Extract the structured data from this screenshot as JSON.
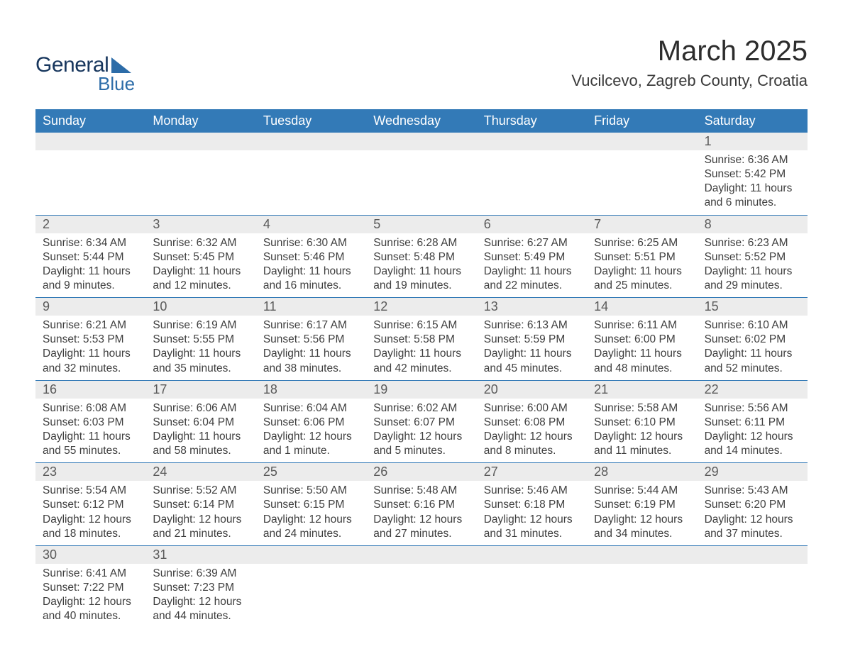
{
  "logo": {
    "text1": "General",
    "text2": "Blue"
  },
  "title": "March 2025",
  "location": "Vucilcevo, Zagreb County, Croatia",
  "colors": {
    "header_bg": "#337ab7",
    "daynum_bg": "#ececec",
    "text": "#3e3e3e",
    "logo_dark": "#17365d",
    "logo_blue": "#2c6ca8"
  },
  "weekdays": [
    "Sunday",
    "Monday",
    "Tuesday",
    "Wednesday",
    "Thursday",
    "Friday",
    "Saturday"
  ],
  "weeks": [
    [
      {
        "n": "",
        "sr": "",
        "ss": "",
        "dl": ""
      },
      {
        "n": "",
        "sr": "",
        "ss": "",
        "dl": ""
      },
      {
        "n": "",
        "sr": "",
        "ss": "",
        "dl": ""
      },
      {
        "n": "",
        "sr": "",
        "ss": "",
        "dl": ""
      },
      {
        "n": "",
        "sr": "",
        "ss": "",
        "dl": ""
      },
      {
        "n": "",
        "sr": "",
        "ss": "",
        "dl": ""
      },
      {
        "n": "1",
        "sr": "Sunrise: 6:36 AM",
        "ss": "Sunset: 5:42 PM",
        "dl": "Daylight: 11 hours and 6 minutes."
      }
    ],
    [
      {
        "n": "2",
        "sr": "Sunrise: 6:34 AM",
        "ss": "Sunset: 5:44 PM",
        "dl": "Daylight: 11 hours and 9 minutes."
      },
      {
        "n": "3",
        "sr": "Sunrise: 6:32 AM",
        "ss": "Sunset: 5:45 PM",
        "dl": "Daylight: 11 hours and 12 minutes."
      },
      {
        "n": "4",
        "sr": "Sunrise: 6:30 AM",
        "ss": "Sunset: 5:46 PM",
        "dl": "Daylight: 11 hours and 16 minutes."
      },
      {
        "n": "5",
        "sr": "Sunrise: 6:28 AM",
        "ss": "Sunset: 5:48 PM",
        "dl": "Daylight: 11 hours and 19 minutes."
      },
      {
        "n": "6",
        "sr": "Sunrise: 6:27 AM",
        "ss": "Sunset: 5:49 PM",
        "dl": "Daylight: 11 hours and 22 minutes."
      },
      {
        "n": "7",
        "sr": "Sunrise: 6:25 AM",
        "ss": "Sunset: 5:51 PM",
        "dl": "Daylight: 11 hours and 25 minutes."
      },
      {
        "n": "8",
        "sr": "Sunrise: 6:23 AM",
        "ss": "Sunset: 5:52 PM",
        "dl": "Daylight: 11 hours and 29 minutes."
      }
    ],
    [
      {
        "n": "9",
        "sr": "Sunrise: 6:21 AM",
        "ss": "Sunset: 5:53 PM",
        "dl": "Daylight: 11 hours and 32 minutes."
      },
      {
        "n": "10",
        "sr": "Sunrise: 6:19 AM",
        "ss": "Sunset: 5:55 PM",
        "dl": "Daylight: 11 hours and 35 minutes."
      },
      {
        "n": "11",
        "sr": "Sunrise: 6:17 AM",
        "ss": "Sunset: 5:56 PM",
        "dl": "Daylight: 11 hours and 38 minutes."
      },
      {
        "n": "12",
        "sr": "Sunrise: 6:15 AM",
        "ss": "Sunset: 5:58 PM",
        "dl": "Daylight: 11 hours and 42 minutes."
      },
      {
        "n": "13",
        "sr": "Sunrise: 6:13 AM",
        "ss": "Sunset: 5:59 PM",
        "dl": "Daylight: 11 hours and 45 minutes."
      },
      {
        "n": "14",
        "sr": "Sunrise: 6:11 AM",
        "ss": "Sunset: 6:00 PM",
        "dl": "Daylight: 11 hours and 48 minutes."
      },
      {
        "n": "15",
        "sr": "Sunrise: 6:10 AM",
        "ss": "Sunset: 6:02 PM",
        "dl": "Daylight: 11 hours and 52 minutes."
      }
    ],
    [
      {
        "n": "16",
        "sr": "Sunrise: 6:08 AM",
        "ss": "Sunset: 6:03 PM",
        "dl": "Daylight: 11 hours and 55 minutes."
      },
      {
        "n": "17",
        "sr": "Sunrise: 6:06 AM",
        "ss": "Sunset: 6:04 PM",
        "dl": "Daylight: 11 hours and 58 minutes."
      },
      {
        "n": "18",
        "sr": "Sunrise: 6:04 AM",
        "ss": "Sunset: 6:06 PM",
        "dl": "Daylight: 12 hours and 1 minute."
      },
      {
        "n": "19",
        "sr": "Sunrise: 6:02 AM",
        "ss": "Sunset: 6:07 PM",
        "dl": "Daylight: 12 hours and 5 minutes."
      },
      {
        "n": "20",
        "sr": "Sunrise: 6:00 AM",
        "ss": "Sunset: 6:08 PM",
        "dl": "Daylight: 12 hours and 8 minutes."
      },
      {
        "n": "21",
        "sr": "Sunrise: 5:58 AM",
        "ss": "Sunset: 6:10 PM",
        "dl": "Daylight: 12 hours and 11 minutes."
      },
      {
        "n": "22",
        "sr": "Sunrise: 5:56 AM",
        "ss": "Sunset: 6:11 PM",
        "dl": "Daylight: 12 hours and 14 minutes."
      }
    ],
    [
      {
        "n": "23",
        "sr": "Sunrise: 5:54 AM",
        "ss": "Sunset: 6:12 PM",
        "dl": "Daylight: 12 hours and 18 minutes."
      },
      {
        "n": "24",
        "sr": "Sunrise: 5:52 AM",
        "ss": "Sunset: 6:14 PM",
        "dl": "Daylight: 12 hours and 21 minutes."
      },
      {
        "n": "25",
        "sr": "Sunrise: 5:50 AM",
        "ss": "Sunset: 6:15 PM",
        "dl": "Daylight: 12 hours and 24 minutes."
      },
      {
        "n": "26",
        "sr": "Sunrise: 5:48 AM",
        "ss": "Sunset: 6:16 PM",
        "dl": "Daylight: 12 hours and 27 minutes."
      },
      {
        "n": "27",
        "sr": "Sunrise: 5:46 AM",
        "ss": "Sunset: 6:18 PM",
        "dl": "Daylight: 12 hours and 31 minutes."
      },
      {
        "n": "28",
        "sr": "Sunrise: 5:44 AM",
        "ss": "Sunset: 6:19 PM",
        "dl": "Daylight: 12 hours and 34 minutes."
      },
      {
        "n": "29",
        "sr": "Sunrise: 5:43 AM",
        "ss": "Sunset: 6:20 PM",
        "dl": "Daylight: 12 hours and 37 minutes."
      }
    ],
    [
      {
        "n": "30",
        "sr": "Sunrise: 6:41 AM",
        "ss": "Sunset: 7:22 PM",
        "dl": "Daylight: 12 hours and 40 minutes."
      },
      {
        "n": "31",
        "sr": "Sunrise: 6:39 AM",
        "ss": "Sunset: 7:23 PM",
        "dl": "Daylight: 12 hours and 44 minutes."
      },
      {
        "n": "",
        "sr": "",
        "ss": "",
        "dl": ""
      },
      {
        "n": "",
        "sr": "",
        "ss": "",
        "dl": ""
      },
      {
        "n": "",
        "sr": "",
        "ss": "",
        "dl": ""
      },
      {
        "n": "",
        "sr": "",
        "ss": "",
        "dl": ""
      },
      {
        "n": "",
        "sr": "",
        "ss": "",
        "dl": ""
      }
    ]
  ]
}
